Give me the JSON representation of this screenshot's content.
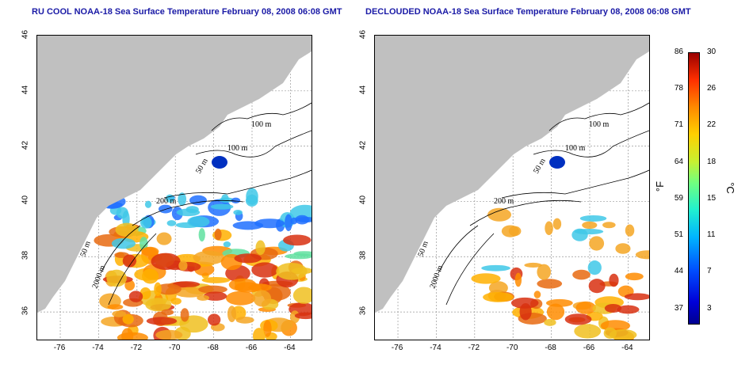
{
  "panels": [
    {
      "title": "RU COOL NOAA-18 Sea Surface Temperature February 08, 2008 06:08 GMT",
      "contours": [
        "100 m",
        "100 m",
        "50 m",
        "200 m",
        "50 m",
        "2000 m"
      ],
      "coverage": "full"
    },
    {
      "title": "DECLOUDED NOAA-18 Sea Surface Temperature February 08, 2008 06:08 GMT",
      "contours": [
        "100 m",
        "100 m",
        "50 m",
        "200 m",
        "50 m",
        "2000 m"
      ],
      "coverage": "declouded"
    }
  ],
  "axes": {
    "x_ticks": [
      "-76",
      "-74",
      "-72",
      "-70",
      "-68",
      "-66",
      "-64"
    ],
    "x_values": [
      -76,
      -74,
      -72,
      -70,
      -68,
      -66,
      -64
    ],
    "y_ticks": [
      "36",
      "38",
      "40",
      "42",
      "44",
      "46"
    ],
    "y_values": [
      36,
      38,
      40,
      42,
      44,
      46
    ],
    "xlim": [
      -77.2,
      -62.9
    ],
    "ylim": [
      35,
      46
    ]
  },
  "colorbar": {
    "f_ticks": [
      "86",
      "78",
      "71",
      "64",
      "59",
      "51",
      "44",
      "37"
    ],
    "c_ticks": [
      "30",
      "26",
      "22",
      "18",
      "15",
      "11",
      "7",
      "3"
    ],
    "c_range": [
      0,
      30
    ],
    "f_unit": "°F",
    "c_unit": "°C"
  },
  "colors": {
    "land": "#c0c0c0",
    "title": "#1a1aa6",
    "warm": "#f0a020",
    "cool": "#30c8e0"
  }
}
